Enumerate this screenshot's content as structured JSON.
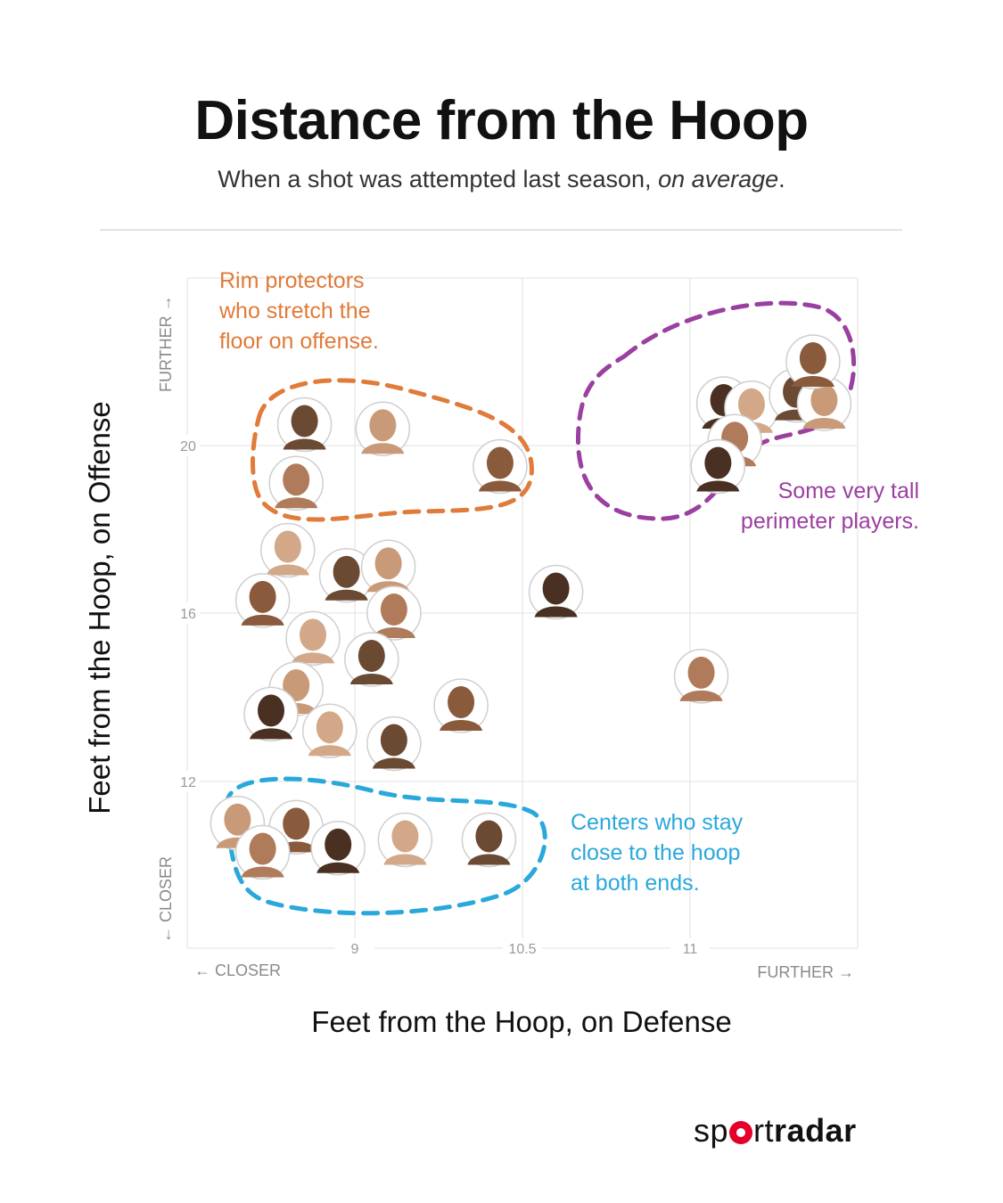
{
  "title": "Distance from the Hoop",
  "subtitle_main": "When a shot was attempted last season, ",
  "subtitle_em": "on average",
  "subtitle_end": ".",
  "brand": {
    "thin_a": "sp",
    "thin_b": "rt",
    "bold": "radar"
  },
  "colors": {
    "orange": "#e07b39",
    "purple": "#9b3fa0",
    "blue": "#29a8dc",
    "grid": "#e6e6e6"
  },
  "chart_data": {
    "type": "scatter",
    "title": "Distance from the Hoop",
    "xlabel": "Feet from the Hoop, on Defense",
    "ylabel": "Feet from the Hoop, on Offense",
    "x_ticks": [
      "9",
      "10.5",
      "11"
    ],
    "y_ticks": [
      "20",
      "16",
      "12"
    ],
    "x_direction": {
      "low": "← CLOSER",
      "high": "FURTHER →"
    },
    "y_direction": {
      "low": "← CLOSER",
      "high": "FURTHER →"
    },
    "grid": true,
    "marker": "player headshot",
    "points": [
      {
        "x": 8.7,
        "y": 20.5
      },
      {
        "x": 9.25,
        "y": 20.4
      },
      {
        "x": 10.3,
        "y": 19.5
      },
      {
        "x": 8.65,
        "y": 19.1
      },
      {
        "x": 11.3,
        "y": 21.0
      },
      {
        "x": 11.55,
        "y": 20.9
      },
      {
        "x": 11.95,
        "y": 21.2
      },
      {
        "x": 12.2,
        "y": 21.0
      },
      {
        "x": 12.1,
        "y": 22.0
      },
      {
        "x": 11.4,
        "y": 20.1
      },
      {
        "x": 11.25,
        "y": 19.5
      },
      {
        "x": 8.6,
        "y": 17.5
      },
      {
        "x": 8.95,
        "y": 16.9
      },
      {
        "x": 9.3,
        "y": 17.1
      },
      {
        "x": 8.45,
        "y": 16.3
      },
      {
        "x": 9.35,
        "y": 16.0
      },
      {
        "x": 10.6,
        "y": 16.5
      },
      {
        "x": 8.75,
        "y": 15.4
      },
      {
        "x": 9.15,
        "y": 14.9
      },
      {
        "x": 8.65,
        "y": 14.2
      },
      {
        "x": 9.95,
        "y": 13.8
      },
      {
        "x": 11.1,
        "y": 14.5
      },
      {
        "x": 8.5,
        "y": 13.6
      },
      {
        "x": 8.85,
        "y": 13.2
      },
      {
        "x": 9.35,
        "y": 12.9
      },
      {
        "x": 8.3,
        "y": 11.0
      },
      {
        "x": 8.65,
        "y": 10.9
      },
      {
        "x": 8.45,
        "y": 10.3
      },
      {
        "x": 8.9,
        "y": 10.4
      },
      {
        "x": 9.45,
        "y": 10.6
      },
      {
        "x": 10.2,
        "y": 10.6
      }
    ],
    "annotations": [
      {
        "group": "orange",
        "lines": [
          "Rim protectors",
          "who stretch the",
          "floor on offense."
        ]
      },
      {
        "group": "purple",
        "lines": [
          "Some very tall",
          "perimeter players."
        ]
      },
      {
        "group": "blue",
        "lines": [
          "Centers who stay",
          "close to the hoop",
          "at both ends."
        ]
      }
    ]
  }
}
